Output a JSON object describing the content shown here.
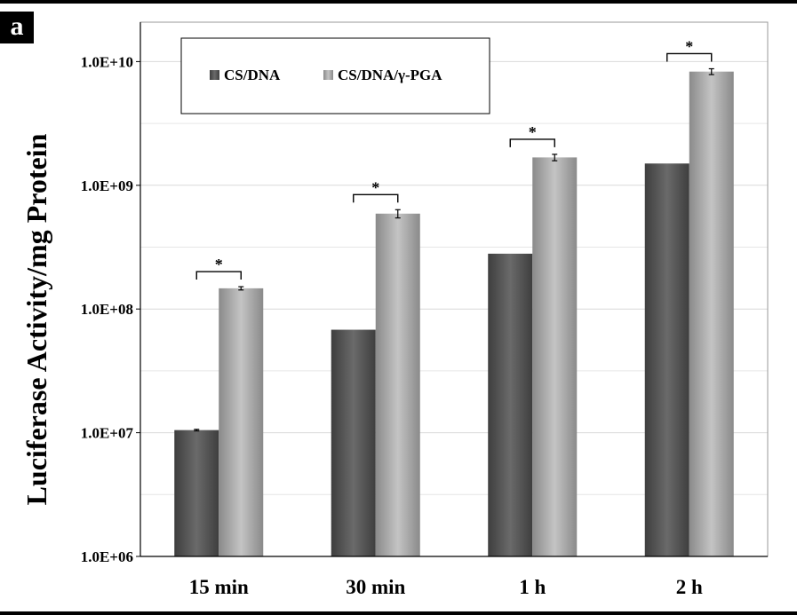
{
  "panel_label": "a",
  "chart_data": {
    "type": "bar",
    "title": "",
    "xlabel": "",
    "ylabel": "Luciferase Activity/mg Protein",
    "yscale": "log",
    "ylim": [
      1000000,
      20000000000
    ],
    "yticks": [
      1000000,
      10000000,
      100000000,
      1000000000,
      10000000000
    ],
    "ytick_labels": [
      "1.0E+06",
      "1.0E+07",
      "1.0E+08",
      "1.0E+09",
      "1.0E+10"
    ],
    "grid": "horizontal",
    "legend_position": "top-left",
    "categories": [
      "15 min",
      "30 min",
      "1 h",
      "2 h"
    ],
    "series": [
      {
        "name": "CS/DNA",
        "color": "#555555",
        "values": [
          10500000,
          68000000,
          280000000,
          1500000000
        ],
        "errors": [
          150000,
          0,
          0,
          0
        ]
      },
      {
        "name": "CS/DNA/γ-PGA",
        "color": "#a6a6a6",
        "values": [
          147000000,
          590000000,
          1680000000,
          8300000000
        ],
        "errors": [
          4500000,
          45000000,
          100000000,
          450000000
        ]
      }
    ],
    "significance": [
      {
        "category": "15 min",
        "label": "*"
      },
      {
        "category": "30 min",
        "label": "*"
      },
      {
        "category": "1 h",
        "label": "*"
      },
      {
        "category": "2 h",
        "label": "*"
      }
    ]
  }
}
